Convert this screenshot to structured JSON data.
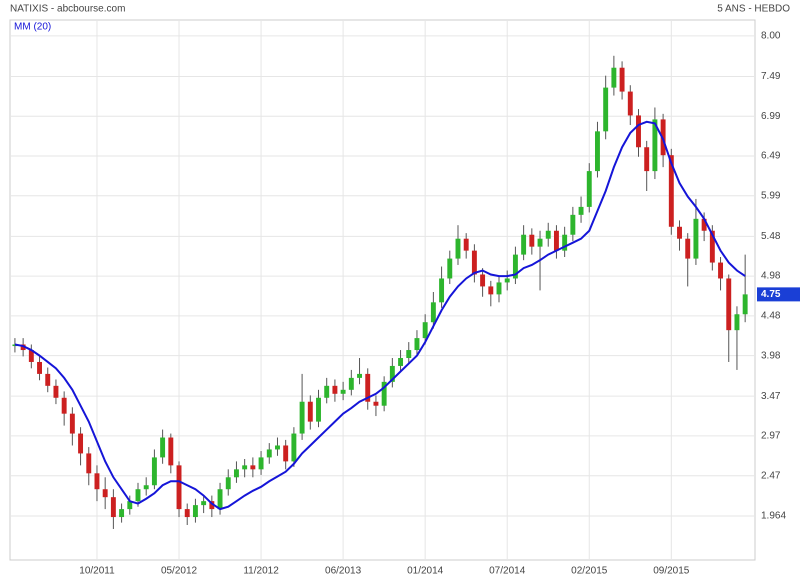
{
  "chart_data": {
    "type": "candlestick",
    "title": "NATIXIS - abcbourse.com",
    "subtitle": "5 ANS - HEBDO",
    "up_color": "#2db52d",
    "down_color": "#cc2020",
    "open": [
      4.1,
      4.12,
      4.05,
      3.9,
      3.75,
      3.6,
      3.45,
      3.25,
      3.0,
      2.75,
      2.5,
      2.3,
      2.2,
      1.95,
      2.05,
      2.15,
      2.3,
      2.35,
      2.7,
      2.95,
      2.6,
      2.05,
      1.95,
      2.1,
      2.15,
      2.05,
      2.3,
      2.45,
      2.55,
      2.6,
      2.55,
      2.7,
      2.8,
      2.85,
      2.65,
      3.0,
      3.4,
      3.15,
      3.45,
      3.6,
      3.5,
      3.55,
      3.7,
      3.75,
      3.4,
      3.35,
      3.65,
      3.85,
      3.95,
      4.05,
      4.2,
      4.4,
      4.65,
      4.95,
      5.2,
      5.45,
      5.3,
      5.0,
      4.85,
      4.75,
      4.9,
      4.95,
      5.25,
      5.5,
      5.35,
      5.45,
      5.55,
      5.3,
      5.5,
      5.75,
      5.85,
      6.3,
      6.8,
      7.35,
      7.6,
      7.3,
      7.0,
      6.6,
      6.3,
      6.95,
      6.5,
      5.6,
      5.45,
      5.2,
      5.7,
      5.55,
      5.15,
      4.95,
      4.3,
      4.5
    ],
    "high": [
      4.2,
      4.2,
      4.12,
      3.98,
      3.83,
      3.68,
      3.53,
      3.33,
      3.08,
      2.83,
      2.6,
      2.45,
      2.3,
      2.12,
      2.22,
      2.38,
      2.45,
      2.8,
      3.05,
      3.0,
      2.65,
      2.12,
      2.18,
      2.22,
      2.22,
      2.38,
      2.55,
      2.65,
      2.68,
      2.7,
      2.78,
      2.88,
      2.95,
      2.92,
      3.08,
      3.75,
      3.48,
      3.55,
      3.7,
      3.68,
      3.65,
      3.8,
      3.95,
      3.82,
      3.48,
      3.72,
      3.95,
      4.05,
      4.15,
      4.3,
      4.5,
      4.78,
      5.1,
      5.3,
      5.62,
      5.52,
      5.38,
      5.08,
      4.92,
      4.98,
      5.05,
      5.35,
      5.62,
      5.58,
      5.55,
      5.65,
      5.62,
      5.6,
      5.85,
      5.98,
      6.4,
      6.92,
      7.5,
      7.75,
      7.68,
      7.38,
      7.08,
      6.68,
      7.1,
      7.02,
      6.58,
      5.68,
      5.52,
      5.95,
      5.78,
      5.62,
      5.22,
      5.0,
      4.6,
      5.25
    ],
    "low": [
      4.02,
      3.97,
      3.82,
      3.67,
      3.52,
      3.37,
      3.1,
      2.85,
      2.6,
      2.35,
      2.15,
      2.05,
      1.8,
      1.88,
      1.98,
      2.08,
      2.22,
      2.3,
      2.62,
      2.5,
      1.95,
      1.85,
      1.88,
      2.0,
      1.95,
      1.98,
      2.22,
      2.38,
      2.45,
      2.45,
      2.48,
      2.62,
      2.72,
      2.55,
      2.58,
      2.92,
      3.05,
      3.08,
      3.38,
      3.4,
      3.42,
      3.48,
      3.62,
      3.3,
      3.22,
      3.28,
      3.58,
      3.78,
      3.88,
      3.98,
      4.12,
      4.32,
      4.58,
      4.88,
      5.12,
      5.2,
      4.9,
      4.72,
      4.6,
      4.65,
      4.8,
      4.88,
      5.18,
      5.25,
      4.8,
      5.35,
      5.2,
      5.22,
      5.42,
      5.65,
      5.78,
      6.22,
      6.7,
      7.25,
      7.2,
      6.88,
      6.48,
      6.05,
      6.2,
      6.35,
      5.5,
      5.3,
      4.85,
      5.12,
      5.42,
      5.05,
      4.8,
      3.9,
      3.8,
      4.4
    ],
    "close": [
      4.12,
      4.05,
      3.9,
      3.75,
      3.6,
      3.45,
      3.25,
      3.0,
      2.75,
      2.5,
      2.3,
      2.2,
      1.95,
      2.05,
      2.15,
      2.3,
      2.35,
      2.7,
      2.95,
      2.6,
      2.05,
      1.95,
      2.1,
      2.15,
      2.05,
      2.3,
      2.45,
      2.55,
      2.6,
      2.55,
      2.7,
      2.8,
      2.85,
      2.65,
      3.0,
      3.4,
      3.15,
      3.45,
      3.6,
      3.5,
      3.55,
      3.7,
      3.75,
      3.4,
      3.35,
      3.65,
      3.85,
      3.95,
      4.05,
      4.2,
      4.4,
      4.65,
      4.95,
      5.2,
      5.45,
      5.3,
      5.0,
      4.85,
      4.75,
      4.9,
      4.95,
      5.25,
      5.5,
      5.35,
      5.45,
      5.55,
      5.3,
      5.5,
      5.75,
      5.85,
      6.3,
      6.8,
      7.35,
      7.6,
      7.3,
      7.0,
      6.6,
      6.3,
      6.95,
      6.5,
      5.6,
      5.45,
      5.2,
      5.7,
      5.55,
      5.15,
      4.95,
      4.3,
      4.5,
      4.75
    ],
    "series": [
      {
        "name": "MM (20)",
        "color": "#1515d8",
        "values": [
          4.12,
          4.1,
          4.05,
          3.98,
          3.9,
          3.82,
          3.7,
          3.55,
          3.35,
          3.15,
          2.9,
          2.65,
          2.45,
          2.3,
          2.15,
          2.12,
          2.18,
          2.25,
          2.35,
          2.4,
          2.4,
          2.35,
          2.3,
          2.22,
          2.12,
          2.05,
          2.08,
          2.15,
          2.22,
          2.28,
          2.33,
          2.4,
          2.46,
          2.52,
          2.62,
          2.75,
          2.85,
          2.95,
          3.05,
          3.15,
          3.25,
          3.32,
          3.4,
          3.45,
          3.5,
          3.58,
          3.68,
          3.78,
          3.88,
          3.98,
          4.15,
          4.35,
          4.55,
          4.72,
          4.85,
          4.95,
          5.02,
          5.05,
          5.0,
          4.98,
          4.98,
          5.0,
          5.08,
          5.12,
          5.18,
          5.25,
          5.3,
          5.35,
          5.4,
          5.45,
          5.55,
          5.8,
          6.05,
          6.35,
          6.6,
          6.78,
          6.88,
          6.92,
          6.9,
          6.7,
          6.4,
          6.15,
          5.98,
          5.85,
          5.7,
          5.5,
          5.3,
          5.15,
          5.05,
          4.98
        ]
      }
    ],
    "xlim": [
      -0.6,
      90.2
    ],
    "xticks": [
      {
        "value": 10,
        "label": "10/2011"
      },
      {
        "value": 20,
        "label": "05/2012"
      },
      {
        "value": 30,
        "label": "11/2012"
      },
      {
        "value": 40,
        "label": "06/2013"
      },
      {
        "value": 50,
        "label": "01/2014"
      },
      {
        "value": 60,
        "label": "07/2014"
      },
      {
        "value": 70,
        "label": "02/2015"
      },
      {
        "value": 80,
        "label": "09/2015"
      }
    ],
    "ylim": [
      1.41,
      8.2
    ],
    "yticks": [
      1.964,
      2.47,
      2.97,
      3.47,
      3.98,
      4.48,
      4.98,
      5.48,
      5.99,
      6.49,
      6.99,
      7.49,
      {
        "value": 8,
        "label": "8.00"
      }
    ],
    "grid": true
  }
}
